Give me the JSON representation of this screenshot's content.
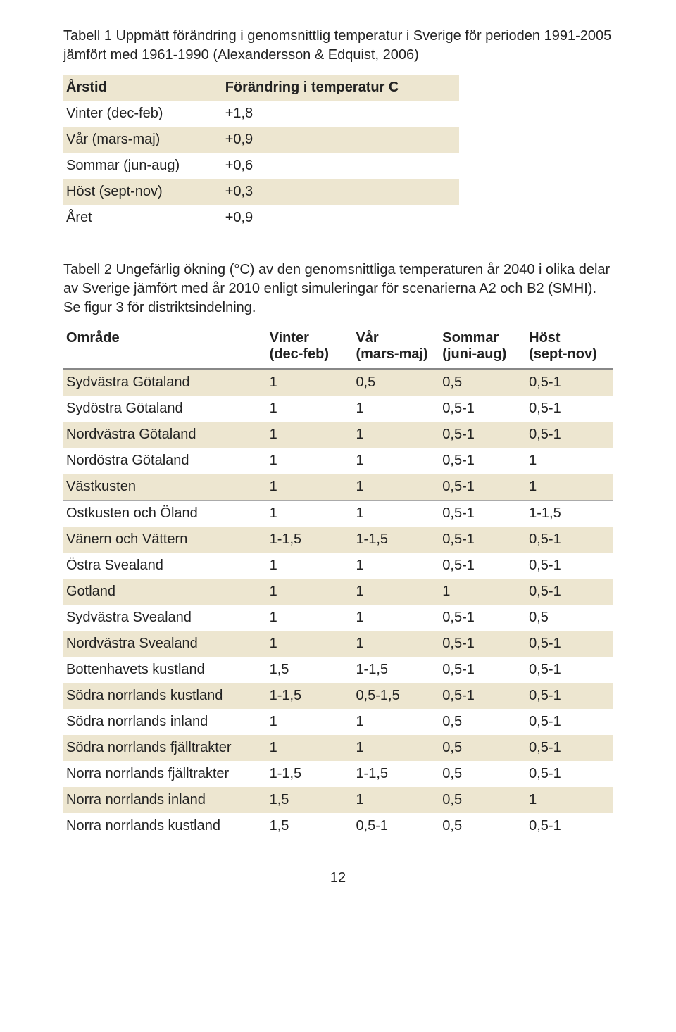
{
  "t1": {
    "caption": "Tabell 1 Uppmätt förändring i genomsnittlig temperatur i Sverige för perioden 1991-2005 jämfört med 1961-1990 (Alexandersson & Edquist, 2006)",
    "h_col1": "Årstid",
    "h_col2": "Förändring i temperatur C",
    "rows": [
      {
        "label": "Vinter (dec-feb)",
        "val": "+1,8"
      },
      {
        "label": "Vår (mars-maj)",
        "val": "+0,9"
      },
      {
        "label": "Sommar (jun-aug)",
        "val": "+0,6"
      },
      {
        "label": "Höst (sept-nov)",
        "val": "+0,3"
      },
      {
        "label": "Året",
        "val": "+0,9"
      }
    ]
  },
  "t2": {
    "caption": "Tabell 2 Ungefärlig ökning (°C) av den genomsnittliga temperaturen år 2040 i olika delar av Sverige jämfört med år 2010 enligt simuleringar för scenarierna A2 och B2 (SMHI). Se figur 3 för distriktsindelning.",
    "h_area": "Område",
    "h_w1": "Vinter",
    "h_w2": "(dec-feb)",
    "h_sp1": "Vår",
    "h_sp2": "(mars-maj)",
    "h_su1": "Sommar",
    "h_su2": "(juni-aug)",
    "h_au1": "Höst",
    "h_au2": "(sept-nov)",
    "rows": [
      {
        "area": "Sydvästra Götaland",
        "w": "1",
        "sp": "0,5",
        "su": "0,5",
        "au": "0,5-1"
      },
      {
        "area": "Sydöstra Götaland",
        "w": "1",
        "sp": "1",
        "su": "0,5-1",
        "au": "0,5-1"
      },
      {
        "area": "Nordvästra Götaland",
        "w": "1",
        "sp": "1",
        "su": "0,5-1",
        "au": "0,5-1"
      },
      {
        "area": "Nordöstra Götaland",
        "w": "1",
        "sp": "1",
        "su": "0,5-1",
        "au": "1"
      },
      {
        "area": "Västkusten",
        "w": "1",
        "sp": "1",
        "su": "0,5-1",
        "au": "1"
      },
      {
        "area": "Ostkusten och Öland",
        "w": "1",
        "sp": "1",
        "su": "0,5-1",
        "au": "1-1,5"
      },
      {
        "area": "Vänern och Vättern",
        "w": "1-1,5",
        "sp": "1-1,5",
        "su": "0,5-1",
        "au": "0,5-1"
      },
      {
        "area": "Östra Svealand",
        "w": "1",
        "sp": "1",
        "su": "0,5-1",
        "au": "0,5-1"
      },
      {
        "area": "Gotland",
        "w": "1",
        "sp": "1",
        "su": "1",
        "au": "0,5-1"
      },
      {
        "area": "Sydvästra Svealand",
        "w": "1",
        "sp": "1",
        "su": "0,5-1",
        "au": "0,5"
      },
      {
        "area": "Nordvästra Svealand",
        "w": "1",
        "sp": "1",
        "su": "0,5-1",
        "au": "0,5-1"
      },
      {
        "area": "Bottenhavets kustland",
        "w": "1,5",
        "sp": "1-1,5",
        "su": "0,5-1",
        "au": "0,5-1"
      },
      {
        "area": "Södra norrlands kustland",
        "w": "1-1,5",
        "sp": "0,5-1,5",
        "su": "0,5-1",
        "au": "0,5-1"
      },
      {
        "area": "Södra norrlands inland",
        "w": "1",
        "sp": "1",
        "su": "0,5",
        "au": "0,5-1"
      },
      {
        "area": "Södra norrlands fjälltrakter",
        "w": "1",
        "sp": "1",
        "su": "0,5",
        "au": "0,5-1"
      },
      {
        "area": "Norra norrlands fjälltrakter",
        "w": "1-1,5",
        "sp": "1-1,5",
        "su": "0,5",
        "au": "0,5-1"
      },
      {
        "area": "Norra norrlands inland",
        "w": "1,5",
        "sp": "1",
        "su": "0,5",
        "au": "1"
      },
      {
        "area": "Norra norrlands kustland",
        "w": "1,5",
        "sp": "0,5-1",
        "su": "0,5",
        "au": "0,5-1"
      }
    ]
  },
  "style": {
    "shade_color": "#ede6d0",
    "sep_color": "#888888",
    "t2_separator_after_index": 4
  },
  "page_number": "12"
}
